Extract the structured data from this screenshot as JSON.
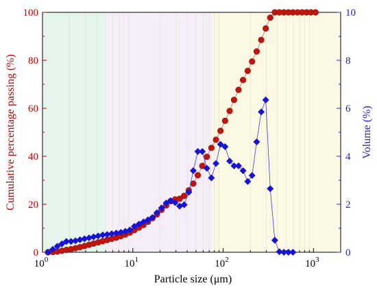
{
  "chart_data": {
    "type": "scatter",
    "xscale": "log",
    "xlim": [
      1,
      2000
    ],
    "ylim_left": [
      0,
      100
    ],
    "ylim_right": [
      0,
      10
    ],
    "xlabel": "Particle size (μm)",
    "ylabel_left": "Cumulative percentage passing (%)",
    "ylabel_right": "Volume (%)",
    "x_tick_labels": [
      {
        "value": 1,
        "base": "10",
        "exp": "0"
      },
      {
        "value": 10,
        "base": "10",
        "exp": "1"
      },
      {
        "value": 100,
        "base": "10",
        "exp": "2"
      },
      {
        "value": 1000,
        "base": "10",
        "exp": "3"
      }
    ],
    "y_left_ticks": [
      "0",
      "20",
      "40",
      "60",
      "80",
      "100"
    ],
    "y_right_ticks": [
      "0",
      "2",
      "4",
      "6",
      "8",
      "10"
    ],
    "background_bands": [
      {
        "from": 1,
        "to": 5,
        "color": "#e6f5ec"
      },
      {
        "from": 5,
        "to": 75,
        "color": "#f5eef8"
      },
      {
        "from": 75,
        "to": 2000,
        "color": "#fbf8e4"
      }
    ],
    "series": [
      {
        "axis": "left",
        "marker": "circle",
        "color": "#c0150f",
        "points": [
          [
            1.15,
            0
          ],
          [
            1.3,
            0.1
          ],
          [
            1.46,
            0.3
          ],
          [
            1.64,
            0.6
          ],
          [
            1.84,
            1
          ],
          [
            2.07,
            1.3
          ],
          [
            2.32,
            1.7
          ],
          [
            2.6,
            2.1
          ],
          [
            2.92,
            2.6
          ],
          [
            3.28,
            3.1
          ],
          [
            3.68,
            3.6
          ],
          [
            4.13,
            4.1
          ],
          [
            4.64,
            4.6
          ],
          [
            5.2,
            5.1
          ],
          [
            5.84,
            5.6
          ],
          [
            6.56,
            6.1
          ],
          [
            7.36,
            6.7
          ],
          [
            8.26,
            7.4
          ],
          [
            9.27,
            8.2
          ],
          [
            10.4,
            9.2
          ],
          [
            11.7,
            10.3
          ],
          [
            13.1,
            11.4
          ],
          [
            14.7,
            12.7
          ],
          [
            16.5,
            14.2
          ],
          [
            18.5,
            15.8
          ],
          [
            20.8,
            17.7
          ],
          [
            23.4,
            19.5
          ],
          [
            26.2,
            21.3
          ],
          [
            29.4,
            22
          ],
          [
            33,
            22.3
          ],
          [
            37,
            23.5
          ],
          [
            41.6,
            25.8
          ],
          [
            46.7,
            28.6
          ],
          [
            52.4,
            32.1
          ],
          [
            58.8,
            36
          ],
          [
            66,
            39.8
          ],
          [
            74.1,
            43.5
          ],
          [
            83.2,
            46.9
          ],
          [
            93.4,
            50.6
          ],
          [
            105,
            54.8
          ],
          [
            118,
            58.9
          ],
          [
            132,
            63.5
          ],
          [
            148,
            67.7
          ],
          [
            166,
            71.8
          ],
          [
            187,
            75.6
          ],
          [
            209,
            79.5
          ],
          [
            235,
            83.7
          ],
          [
            264,
            88.5
          ],
          [
            296,
            93.3
          ],
          [
            332,
            97.8
          ],
          [
            373,
            100
          ],
          [
            419,
            100
          ],
          [
            470,
            100
          ],
          [
            528,
            100
          ],
          [
            592,
            100
          ],
          [
            665,
            100
          ],
          [
            746,
            100
          ],
          [
            837,
            100
          ],
          [
            940,
            100
          ],
          [
            1055,
            100
          ]
        ]
      },
      {
        "axis": "right",
        "marker": "diamond",
        "color": "#1414d2",
        "points": [
          [
            1.15,
            0
          ],
          [
            1.3,
            0.12
          ],
          [
            1.46,
            0.25
          ],
          [
            1.64,
            0.35
          ],
          [
            1.84,
            0.45
          ],
          [
            2.07,
            0.45
          ],
          [
            2.32,
            0.48
          ],
          [
            2.6,
            0.52
          ],
          [
            2.92,
            0.56
          ],
          [
            3.28,
            0.6
          ],
          [
            3.68,
            0.64
          ],
          [
            4.13,
            0.68
          ],
          [
            4.64,
            0.72
          ],
          [
            5.2,
            0.74
          ],
          [
            5.84,
            0.77
          ],
          [
            6.56,
            0.8
          ],
          [
            7.36,
            0.83
          ],
          [
            8.26,
            0.87
          ],
          [
            9.27,
            0.93
          ],
          [
            10.4,
            1.08
          ],
          [
            11.7,
            1.17
          ],
          [
            13.1,
            1.26
          ],
          [
            14.7,
            1.35
          ],
          [
            16.5,
            1.45
          ],
          [
            18.5,
            1.65
          ],
          [
            20.8,
            1.85
          ],
          [
            23.4,
            2.05
          ],
          [
            26.2,
            2.15
          ],
          [
            29.4,
            2.07
          ],
          [
            33,
            1.92
          ],
          [
            37,
            1.98
          ],
          [
            41.6,
            2.5
          ],
          [
            46.7,
            3.4
          ],
          [
            52.4,
            4.2
          ],
          [
            58.8,
            4.2
          ],
          [
            66,
            3.5
          ],
          [
            74.1,
            3.1
          ],
          [
            83.2,
            3.7
          ],
          [
            93.4,
            4.5
          ],
          [
            105,
            4.4
          ],
          [
            118,
            3.8
          ],
          [
            132,
            3.6
          ],
          [
            148,
            3.6
          ],
          [
            166,
            3.4
          ],
          [
            187,
            2.95
          ],
          [
            209,
            3.2
          ],
          [
            235,
            4.6
          ],
          [
            264,
            5.85
          ],
          [
            296,
            6.35
          ],
          [
            332,
            2.65
          ],
          [
            373,
            0.5
          ],
          [
            419,
            0.02
          ],
          [
            470,
            0
          ],
          [
            528,
            0
          ],
          [
            592,
            0
          ]
        ]
      }
    ]
  }
}
